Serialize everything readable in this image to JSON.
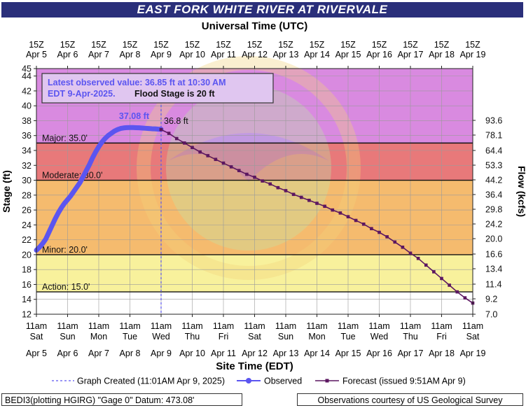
{
  "title": "EAST FORK WHITE RIVER AT RIVERVALE",
  "footer": {
    "left": "BEDI3(plotting HGIRG) \"Gage 0\" Datum: 473.08'",
    "right": "Observations courtesy of US Geological Survey"
  },
  "colors": {
    "title_bg": "#2a2f7a",
    "major": "#d98ae0",
    "major_band": "#e8797a",
    "moderate_band": "#f5bb6e",
    "minor_band": "#f8f19c",
    "below_action": "#ffffff",
    "observed": "#5b55f0",
    "forecast": "#5c1760"
  },
  "info_box": {
    "line1": "Latest observed value: 36.85 ft at 10:30 AM",
    "line2a": "EDT 9-Apr-2025.",
    "line2b": "Flood Stage is 20 ft"
  },
  "chart_data": {
    "type": "line",
    "title": "EAST FORK WHITE RIVER AT RIVERVALE",
    "top_axis_title": "Universal Time (UTC)",
    "bottom_axis_title": "Site Time (EDT)",
    "ylabel": "Stage (ft)",
    "y2label": "Flow (kcfs)",
    "ylim": [
      12,
      45
    ],
    "xlim_days": [
      "Apr 5",
      "Apr 19"
    ],
    "grid": true,
    "y_ticks": [
      12,
      14,
      16,
      18,
      20,
      22,
      24,
      26,
      28,
      30,
      32,
      34,
      36,
      38,
      40,
      42,
      44,
      45
    ],
    "flow_ticks": [
      {
        "stage": 13.0,
        "label": "7.0"
      },
      {
        "stage": 14.0,
        "label": "9.2"
      },
      {
        "stage": 15.1,
        "label": "11.4"
      },
      {
        "stage": 16.2,
        "label": "13.4"
      },
      {
        "stage": 17.3,
        "label": "16.6"
      },
      {
        "stage": 18.4,
        "label": "20.0"
      },
      {
        "stage": 19.5,
        "label": "24.2"
      },
      {
        "stage": 20.6,
        "label": "29.8"
      },
      {
        "stage": 21.7,
        "label": "36.4"
      },
      {
        "stage": 22.8,
        "label": "44.2"
      },
      {
        "stage": 23.9,
        "label": "53.3"
      },
      {
        "stage": 25.0,
        "label": "64.4"
      },
      {
        "stage": 26.1,
        "label": "78.1"
      },
      {
        "stage": 27.2,
        "label": "93.6"
      }
    ],
    "top_ticks": [
      {
        "z": "15Z",
        "date": "Apr 5"
      },
      {
        "z": "15Z",
        "date": "Apr 6"
      },
      {
        "z": "15Z",
        "date": "Apr 7"
      },
      {
        "z": "15Z",
        "date": "Apr 8"
      },
      {
        "z": "15Z",
        "date": "Apr 9"
      },
      {
        "z": "15Z",
        "date": "Apr 10"
      },
      {
        "z": "15Z",
        "date": "Apr 11"
      },
      {
        "z": "15Z",
        "date": "Apr 12"
      },
      {
        "z": "15Z",
        "date": "Apr 13"
      },
      {
        "z": "15Z",
        "date": "Apr 14"
      },
      {
        "z": "15Z",
        "date": "Apr 15"
      },
      {
        "z": "15Z",
        "date": "Apr 16"
      },
      {
        "z": "15Z",
        "date": "Apr 17"
      },
      {
        "z": "15Z",
        "date": "Apr 18"
      },
      {
        "z": "15Z",
        "date": "Apr 19"
      }
    ],
    "bottom_ticks": [
      {
        "time": "11am",
        "day": "Sat",
        "date": "Apr 5"
      },
      {
        "time": "11am",
        "day": "Sun",
        "date": "Apr 6"
      },
      {
        "time": "11am",
        "day": "Mon",
        "date": "Apr 7"
      },
      {
        "time": "11am",
        "day": "Tue",
        "date": "Apr 8"
      },
      {
        "time": "11am",
        "day": "Wed",
        "date": "Apr 9"
      },
      {
        "time": "11am",
        "day": "Thu",
        "date": "Apr 10"
      },
      {
        "time": "11am",
        "day": "Fri",
        "date": "Apr 11"
      },
      {
        "time": "11am",
        "day": "Sat",
        "date": "Apr 12"
      },
      {
        "time": "11am",
        "day": "Sun",
        "date": "Apr 13"
      },
      {
        "time": "11am",
        "day": "Mon",
        "date": "Apr 14"
      },
      {
        "time": "11am",
        "day": "Tue",
        "date": "Apr 15"
      },
      {
        "time": "11am",
        "day": "Wed",
        "date": "Apr 16"
      },
      {
        "time": "11am",
        "day": "Thu",
        "date": "Apr 17"
      },
      {
        "time": "11am",
        "day": "Fri",
        "date": "Apr 18"
      },
      {
        "time": "11am",
        "day": "Sat",
        "date": "Apr 19"
      }
    ],
    "flood_categories": [
      {
        "name": "Action",
        "stage": 15.0,
        "label": "Action: 15.0'"
      },
      {
        "name": "Minor",
        "stage": 20.0,
        "label": "Minor: 20.0'"
      },
      {
        "name": "Moderate",
        "stage": 30.0,
        "label": "Moderate: 30.0'"
      },
      {
        "name": "Major",
        "stage": 35.0,
        "label": "Major: 35.0'"
      }
    ],
    "graph_created_day": 4.0,
    "peak_label": "37.08 ft",
    "forecast_start_label": "36.8 ft",
    "legend": [
      {
        "name": "Graph Created (11:01AM Apr 9, 2025)",
        "style": "dashed"
      },
      {
        "name": "Observed",
        "style": "line-dot"
      },
      {
        "name": "Forecast (issued 9:51AM Apr 9)",
        "style": "line-square"
      }
    ],
    "series": [
      {
        "name": "Observed",
        "x_days": [
          0,
          0.1,
          0.2,
          0.3,
          0.4,
          0.5,
          0.6,
          0.7,
          0.8,
          0.9,
          1.0,
          1.1,
          1.2,
          1.3,
          1.4,
          1.5,
          1.6,
          1.7,
          1.8,
          1.9,
          2.0,
          2.1,
          2.2,
          2.3,
          2.4,
          2.5,
          2.6,
          2.7,
          2.8,
          2.9,
          3.0,
          3.1,
          3.2,
          3.3,
          3.4,
          3.5,
          3.6,
          3.7,
          3.8,
          3.9,
          4.0
        ],
        "y": [
          20.6,
          21.0,
          21.5,
          22.1,
          23.0,
          23.9,
          24.8,
          25.6,
          26.3,
          26.9,
          27.4,
          27.9,
          28.5,
          29.1,
          29.7,
          30.5,
          31.3,
          32.1,
          33.0,
          33.8,
          34.5,
          35.1,
          35.6,
          36.0,
          36.3,
          36.6,
          36.8,
          36.95,
          37.03,
          37.07,
          37.08,
          37.08,
          37.06,
          37.04,
          37.01,
          36.98,
          36.95,
          36.92,
          36.9,
          36.87,
          36.85
        ]
      },
      {
        "name": "Forecast",
        "x_days": [
          4.0,
          4.25,
          4.5,
          4.75,
          5.0,
          5.25,
          5.5,
          5.75,
          6.0,
          6.25,
          6.5,
          6.75,
          7.0,
          7.25,
          7.5,
          7.75,
          8.0,
          8.25,
          8.5,
          8.75,
          9.0,
          9.25,
          9.5,
          9.75,
          10.0,
          10.25,
          10.5,
          10.75,
          11.0,
          11.25,
          11.5,
          11.75,
          12.0,
          12.25,
          12.5,
          12.75,
          13.0,
          13.25,
          13.5,
          13.75,
          14.0
        ],
        "y": [
          36.8,
          36.3,
          35.6,
          35.0,
          34.4,
          33.8,
          33.3,
          32.8,
          32.3,
          31.8,
          31.3,
          30.8,
          30.4,
          29.9,
          29.5,
          29.0,
          28.6,
          28.1,
          27.7,
          27.3,
          26.9,
          26.5,
          26.0,
          25.6,
          25.1,
          24.6,
          24.1,
          23.5,
          23.0,
          22.4,
          21.7,
          21.0,
          20.2,
          19.5,
          18.6,
          17.7,
          16.8,
          15.9,
          15.0,
          14.2,
          13.5
        ]
      }
    ]
  }
}
